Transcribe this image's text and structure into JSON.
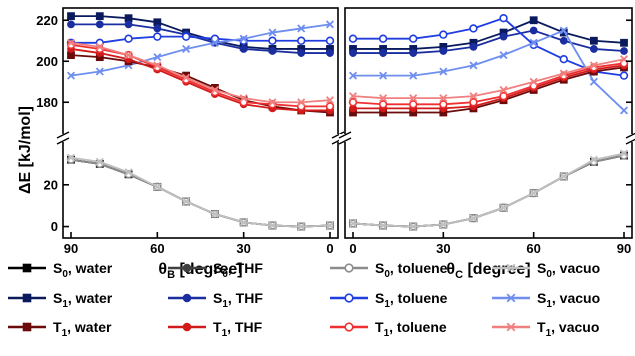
{
  "chart_data": {
    "type": "line",
    "ylabel": "ΔE [kJ/mol]",
    "y_scale": "broken",
    "y_segments": [
      {
        "range": [
          -5,
          40
        ],
        "ticks": [
          0,
          20
        ]
      },
      {
        "range": [
          165,
          225
        ],
        "ticks": [
          180,
          200,
          220
        ]
      }
    ],
    "grid": false,
    "legend_position": "bottom",
    "panels": [
      {
        "id": "B",
        "xlabel_sym": "θ",
        "xlabel_sub": "B",
        "xlabel_unit": " [degree]",
        "xlim": [
          90,
          0
        ],
        "xticks": [
          90,
          60,
          30,
          0
        ],
        "x": [
          90,
          80,
          70,
          60,
          50,
          40,
          30,
          20,
          10,
          0
        ]
      },
      {
        "id": "C",
        "xlabel_sym": "θ",
        "xlabel_sub": "C",
        "xlabel_unit": " [degree]",
        "xlim": [
          0,
          90
        ],
        "xticks": [
          0,
          30,
          60,
          90
        ],
        "x": [
          0,
          10,
          20,
          30,
          40,
          50,
          60,
          70,
          80,
          90
        ]
      }
    ],
    "series": [
      {
        "state": "S",
        "sub": "0",
        "solvent": "water",
        "color": "#000000",
        "marker": "square",
        "B": [
          32,
          30,
          25,
          19,
          12,
          6,
          2,
          0.5,
          0,
          0.5
        ],
        "C": [
          1.5,
          0.5,
          0,
          1,
          4,
          9,
          16,
          24,
          31,
          34
        ]
      },
      {
        "state": "S",
        "sub": "0",
        "solvent": "THF",
        "color": "#404040",
        "marker": "circle",
        "B": [
          32,
          30,
          25,
          19,
          12,
          6,
          2,
          0.5,
          0,
          0.5
        ],
        "C": [
          1.5,
          0.5,
          0,
          1,
          4,
          9,
          16,
          24,
          31,
          34
        ]
      },
      {
        "state": "S",
        "sub": "0",
        "solvent": "toluene",
        "color": "#8c8c8c",
        "marker": "open-circle",
        "B": [
          32,
          30,
          25,
          19,
          12,
          6,
          2,
          0.5,
          0,
          0.5
        ],
        "C": [
          1.5,
          0.5,
          0,
          1,
          4,
          9,
          16,
          24,
          31,
          34
        ]
      },
      {
        "state": "S",
        "sub": "0",
        "solvent": "vacuo",
        "color": "#c0c0c0",
        "marker": "x",
        "B": [
          33,
          31,
          26,
          19,
          12,
          6,
          2,
          0.5,
          0,
          0.5
        ],
        "C": [
          1.5,
          0.5,
          0,
          1,
          4,
          9,
          16,
          24,
          32,
          35
        ]
      },
      {
        "state": "S",
        "sub": "1",
        "solvent": "water",
        "color": "#0a1a5c",
        "marker": "square",
        "B": [
          222,
          222,
          221,
          219,
          214,
          210,
          207,
          206,
          206,
          206
        ],
        "C": [
          206,
          206,
          206,
          207,
          209,
          214,
          220,
          214,
          210,
          209
        ]
      },
      {
        "state": "S",
        "sub": "1",
        "solvent": "THF",
        "color": "#1a2ea0",
        "marker": "circle",
        "B": [
          218,
          218,
          218,
          216,
          213,
          209,
          206,
          205,
          204,
          204
        ],
        "C": [
          204,
          204,
          204,
          205,
          207,
          212,
          215,
          210,
          206,
          205
        ]
      },
      {
        "state": "S",
        "sub": "1",
        "solvent": "toluene",
        "color": "#1f3de0",
        "marker": "open-circle",
        "B": [
          209,
          209,
          211,
          212,
          212,
          211,
          210,
          210,
          210,
          210
        ],
        "C": [
          211,
          211,
          211,
          213,
          216,
          221,
          208,
          201,
          195,
          193
        ]
      },
      {
        "state": "S",
        "sub": "1",
        "solvent": "vacuo",
        "color": "#6f8fef",
        "marker": "x",
        "B": [
          193,
          195,
          198,
          202,
          206,
          209,
          211,
          214,
          216,
          218
        ],
        "C": [
          193,
          193,
          193,
          195,
          198,
          203,
          209,
          215,
          190,
          176
        ]
      },
      {
        "state": "T",
        "sub": "1",
        "solvent": "water",
        "color": "#6b0a0a",
        "marker": "square",
        "B": [
          203,
          202,
          200,
          197,
          193,
          187,
          181,
          178,
          176,
          175
        ],
        "C": [
          175,
          175,
          175,
          175,
          177,
          181,
          186,
          191,
          195,
          197
        ]
      },
      {
        "state": "T",
        "sub": "1",
        "solvent": "THF",
        "color": "#d11a1a",
        "marker": "circle",
        "B": [
          206,
          204,
          201,
          196,
          190,
          184,
          179,
          177,
          176,
          176
        ],
        "C": [
          177,
          177,
          177,
          177,
          178,
          182,
          187,
          192,
          196,
          198
        ]
      },
      {
        "state": "T",
        "sub": "1",
        "solvent": "toluene",
        "color": "#f03030",
        "marker": "open-circle",
        "B": [
          208,
          206,
          203,
          197,
          191,
          185,
          180,
          179,
          178,
          178
        ],
        "C": [
          180,
          179,
          179,
          179,
          180,
          183,
          188,
          193,
          197,
          199
        ]
      },
      {
        "state": "T",
        "sub": "1",
        "solvent": "vacuo",
        "color": "#f08080",
        "marker": "x",
        "B": [
          209,
          207,
          203,
          198,
          192,
          186,
          182,
          180,
          180,
          181
        ],
        "C": [
          183,
          182,
          182,
          182,
          183,
          186,
          190,
          194,
          198,
          201
        ]
      }
    ],
    "legend_columns": [
      [
        "S|0|water",
        "S|1|water",
        "T|1|water"
      ],
      [
        "S|0|THF",
        "S|1|THF",
        "T|1|THF"
      ],
      [
        "S|0|toluene",
        "S|1|toluene",
        "T|1|toluene"
      ],
      [
        "S|0|vacuo",
        "S|1|vacuo",
        "T|1|vacuo"
      ]
    ]
  }
}
